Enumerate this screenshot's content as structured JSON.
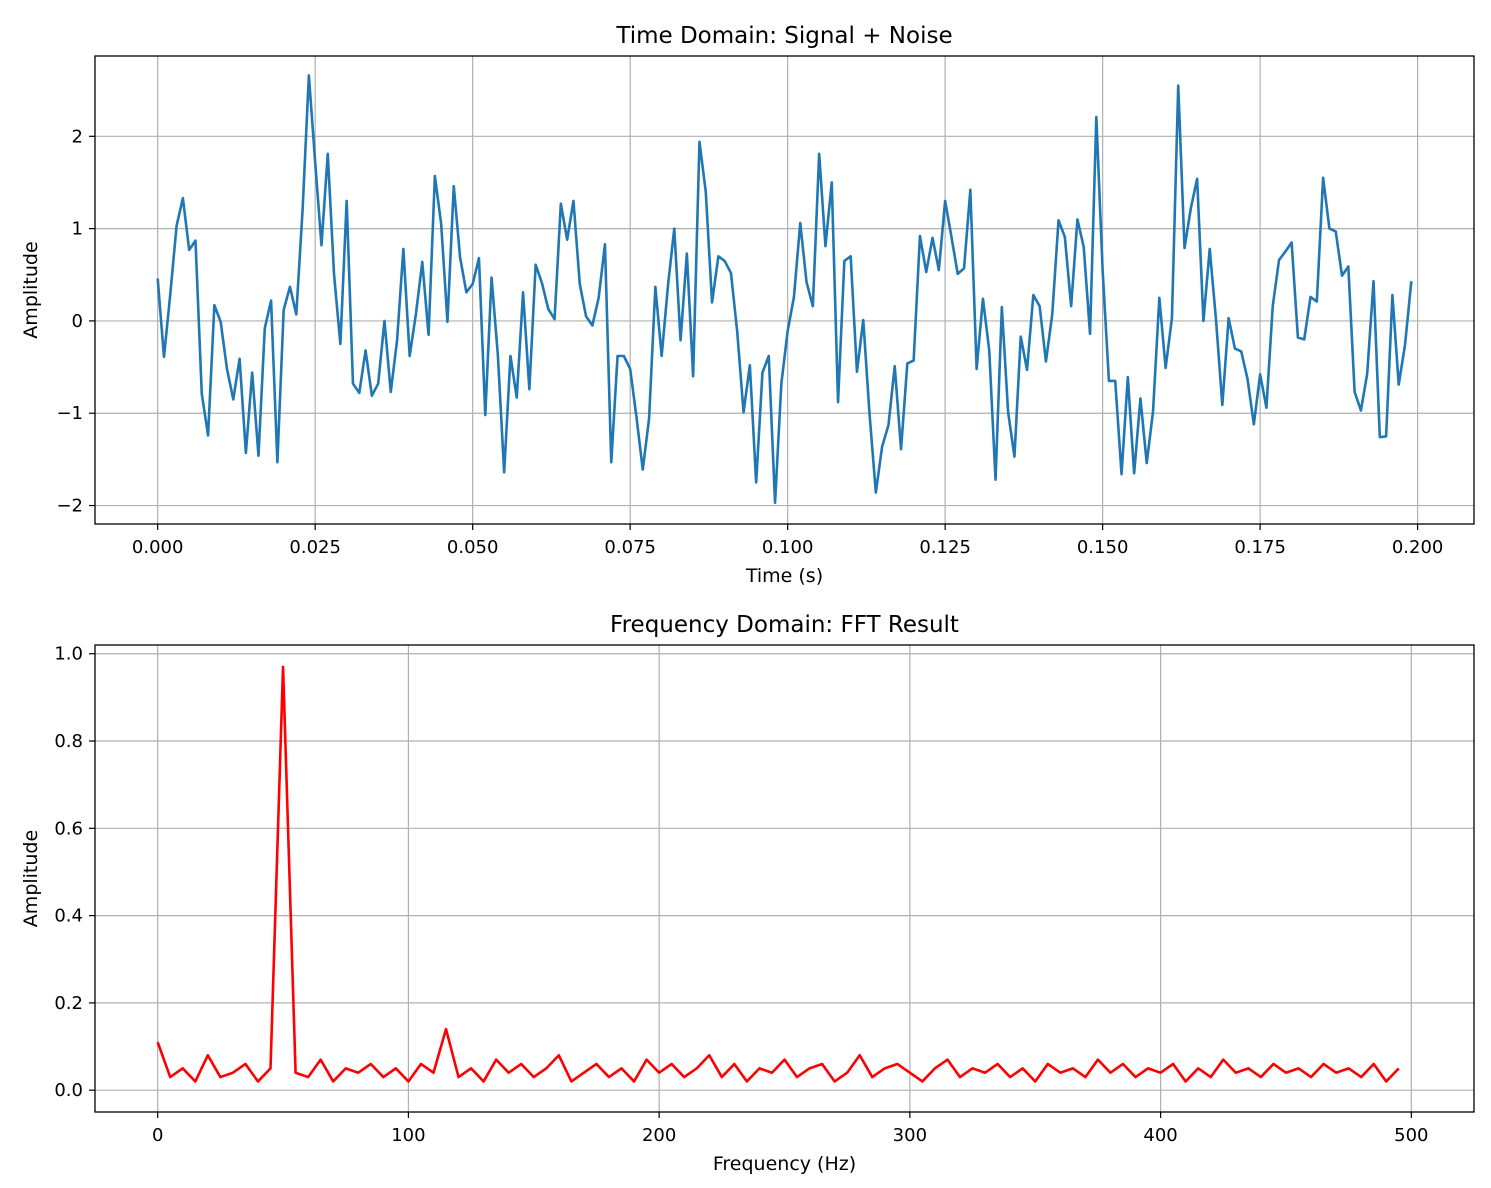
{
  "chart_data": [
    {
      "type": "line",
      "title": "Time Domain: Signal + Noise",
      "xlabel": "Time (s)",
      "ylabel": "Amplitude",
      "xlim": [
        -0.00995,
        0.20895
      ],
      "ylim": [
        -2.2,
        2.87
      ],
      "xticks": [
        0.0,
        0.025,
        0.05,
        0.075,
        0.1,
        0.125,
        0.15,
        0.175,
        0.2
      ],
      "xtick_labels": [
        "0.000",
        "0.025",
        "0.050",
        "0.075",
        "0.100",
        "0.125",
        "0.150",
        "0.175",
        "0.200"
      ],
      "yticks": [
        -2,
        -1,
        0,
        1,
        2
      ],
      "ytick_labels": [
        "−2",
        "−1",
        "0",
        "1",
        "2"
      ],
      "grid": true,
      "color": "#1f77b4",
      "x_start": 0.0,
      "x_step": 0.001,
      "y": [
        0.46,
        -0.39,
        0.29,
        1.03,
        1.33,
        0.77,
        0.87,
        -0.79,
        -1.24,
        0.17,
        -0.01,
        -0.52,
        -0.85,
        -0.41,
        -1.43,
        -0.56,
        -1.46,
        -0.08,
        0.22,
        -1.53,
        0.12,
        0.37,
        0.07,
        1.2,
        2.66,
        1.72,
        0.82,
        1.81,
        0.5,
        -0.25,
        1.3,
        -0.68,
        -0.78,
        -0.32,
        -0.81,
        -0.68,
        0.0,
        -0.77,
        -0.21,
        0.78,
        -0.38,
        0.08,
        0.64,
        -0.15,
        1.57,
        1.05,
        -0.01,
        1.46,
        0.69,
        0.31,
        0.4,
        0.68,
        -1.02,
        0.47,
        -0.37,
        -1.64,
        -0.38,
        -0.83,
        0.31,
        -0.74,
        0.61,
        0.41,
        0.13,
        0.02,
        1.27,
        0.88,
        1.3,
        0.4,
        0.05,
        -0.05,
        0.25,
        0.83,
        -1.53,
        -0.38,
        -0.38,
        -0.52,
        -1.04,
        -1.61,
        -1.06,
        0.37,
        -0.38,
        0.38,
        1.0,
        -0.21,
        0.73,
        -0.6,
        1.94,
        1.4,
        0.2,
        0.7,
        0.65,
        0.52,
        -0.12,
        -0.99,
        -0.48,
        -1.75,
        -0.56,
        -0.38,
        -1.97,
        -0.68,
        -0.11,
        0.26,
        1.06,
        0.42,
        0.16,
        1.81,
        0.81,
        1.5,
        -0.88,
        0.65,
        0.7,
        -0.55,
        0.01,
        -1.01,
        -1.86,
        -1.36,
        -1.13,
        -0.49,
        -1.39,
        -0.46,
        -0.43,
        0.92,
        0.53,
        0.9,
        0.55,
        1.3,
        0.91,
        0.51,
        0.57,
        1.42,
        -0.52,
        0.24,
        -0.32,
        -1.72,
        0.15,
        -0.99,
        -1.47,
        -0.17,
        -0.53,
        0.28,
        0.16,
        -0.44,
        0.07,
        1.09,
        0.91,
        0.16,
        1.1,
        0.8,
        -0.14,
        2.21,
        0.55,
        -0.65,
        -0.65,
        -1.66,
        -0.61,
        -1.65,
        -0.84,
        -1.54,
        -0.98,
        0.25,
        -0.51,
        0.03,
        2.55,
        0.79,
        1.22,
        1.54,
        0.0,
        0.78,
        0.01,
        -0.91,
        0.03,
        -0.3,
        -0.33,
        -0.63,
        -1.12,
        -0.58,
        -0.94,
        0.16,
        0.66,
        0.75,
        0.85,
        -0.18,
        -0.2,
        0.26,
        0.21,
        1.55,
        1.0,
        0.97,
        0.49,
        0.59,
        -0.77,
        -0.97,
        -0.57,
        0.43,
        -1.26,
        -1.25,
        0.28,
        -0.69,
        -0.26,
        0.43
      ]
    },
    {
      "type": "line",
      "title": "Frequency Domain: FFT Result",
      "xlabel": "Frequency (Hz)",
      "ylabel": "Amplitude",
      "xlim": [
        -25,
        525
      ],
      "ylim": [
        -0.05,
        1.02
      ],
      "xticks": [
        0,
        100,
        200,
        300,
        400,
        500
      ],
      "xtick_labels": [
        "0",
        "100",
        "200",
        "300",
        "400",
        "500"
      ],
      "yticks": [
        0.0,
        0.2,
        0.4,
        0.6,
        0.8,
        1.0
      ],
      "ytick_labels": [
        "0.0",
        "0.2",
        "0.4",
        "0.6",
        "0.8",
        "1.0"
      ],
      "grid": true,
      "color": "#ff0000",
      "x_start": 0,
      "x_step": 5,
      "y": [
        0.11,
        0.03,
        0.05,
        0.02,
        0.08,
        0.03,
        0.04,
        0.06,
        0.02,
        0.05,
        0.97,
        0.04,
        0.03,
        0.07,
        0.02,
        0.05,
        0.04,
        0.06,
        0.03,
        0.05,
        0.02,
        0.06,
        0.04,
        0.14,
        0.03,
        0.05,
        0.02,
        0.07,
        0.04,
        0.06,
        0.03,
        0.05,
        0.08,
        0.02,
        0.04,
        0.06,
        0.03,
        0.05,
        0.02,
        0.07,
        0.04,
        0.06,
        0.03,
        0.05,
        0.08,
        0.03,
        0.06,
        0.02,
        0.05,
        0.04,
        0.07,
        0.03,
        0.05,
        0.06,
        0.02,
        0.04,
        0.08,
        0.03,
        0.05,
        0.06,
        0.04,
        0.02,
        0.05,
        0.07,
        0.03,
        0.05,
        0.04,
        0.06,
        0.03,
        0.05,
        0.02,
        0.06,
        0.04,
        0.05,
        0.03,
        0.07,
        0.04,
        0.06,
        0.03,
        0.05,
        0.04,
        0.06,
        0.02,
        0.05,
        0.03,
        0.07,
        0.04,
        0.05,
        0.03,
        0.06,
        0.04,
        0.05,
        0.03,
        0.06,
        0.04,
        0.05,
        0.03,
        0.06,
        0.02,
        0.05
      ]
    }
  ]
}
